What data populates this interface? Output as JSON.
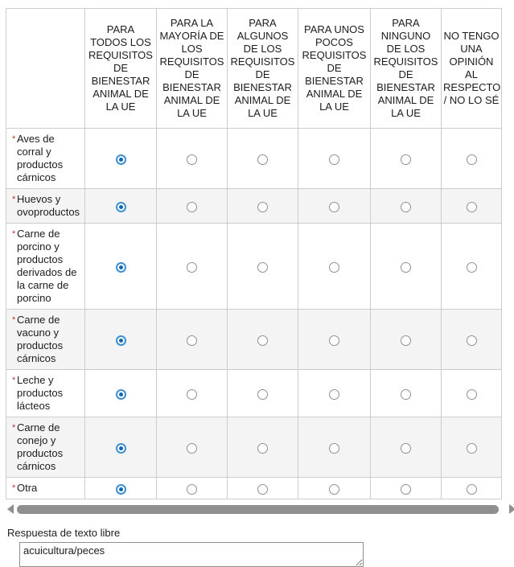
{
  "colors": {
    "radio_selected_ring": "#3d8fd0",
    "radio_selected_dot": "#0e67b0",
    "radio_unselected_border": "#909090",
    "required_marker_color": "#b03a33",
    "table_border": "#cccccc",
    "alt_row_background": "#f4f4f4",
    "scrollbar_gray": "#8f8f8f"
  },
  "matrix": {
    "required_marker": "*",
    "columns": [
      "PARA\nTODOS LOS\nREQUISITOS\nDE\nBIENESTAR\nANIMAL DE\nLA UE",
      "PARA LA\nMAYORÍA DE\nLOS\nREQUISITOS\nDE\nBIENESTAR\nANIMAL DE\nLA UE",
      "PARA\nALGUNOS\nDE LOS\nREQUISITOS\nDE\nBIENESTAR\nANIMAL DE\nLA UE",
      "PARA UNOS\nPOCOS\nREQUISITOS\nDE\nBIENESTAR\nANIMAL DE\nLA UE",
      "PARA\nNINGUNO\nDE LOS\nREQUISITOS\nDE\nBIENESTAR\nANIMAL DE\nLA UE",
      "NO TENGO\nUNA\nOPINIÓN\nAL\nRESPECTO\n/ NO LO SÉ"
    ],
    "rows": [
      {
        "label": "Aves de\ncorral y\nproductos\ncárnicos",
        "selected": 0
      },
      {
        "label": "Huevos y\novoproductos",
        "selected": 0
      },
      {
        "label": "Carne de\nporcino y\nproductos\nderivados de\nla carne de\nporcino",
        "selected": 0
      },
      {
        "label": "Carne de\nvacuno y\nproductos\ncárnicos",
        "selected": 0
      },
      {
        "label": "Leche y\nproductos\nlácteos",
        "selected": 0
      },
      {
        "label": "Carne de\nconejo y\nproductos\ncárnicos",
        "selected": 0
      },
      {
        "label": "Otra",
        "selected": 0
      }
    ]
  },
  "free_text": {
    "label": "Respuesta de texto libre",
    "value": "acuicultura/peces"
  }
}
